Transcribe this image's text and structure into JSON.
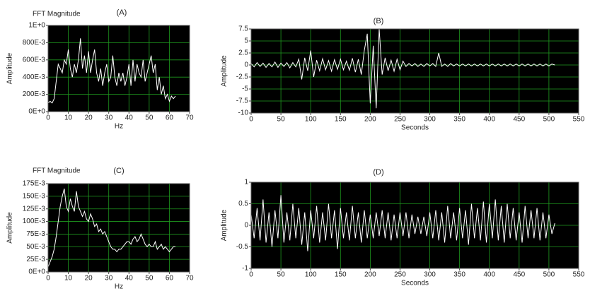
{
  "chart_data": [
    {
      "type": "line",
      "title": "(A)",
      "subtitle": "FFT Magnitude",
      "x_label": "Hz",
      "y_label": "Amplitude",
      "background": "#000000",
      "grid": true,
      "grid_color": "#1f9a1f",
      "color": "#ffffff",
      "xlim": [
        0,
        70
      ],
      "xticks": [
        0,
        10,
        20,
        30,
        40,
        50,
        60,
        70
      ],
      "ylim": [
        0,
        1
      ],
      "yticks": [
        {
          "value": 0,
          "label": "0E+0"
        },
        {
          "value": 0.2,
          "label": "200E-3"
        },
        {
          "value": 0.4,
          "label": "400E-3"
        },
        {
          "value": 0.6,
          "label": "600E-3"
        },
        {
          "value": 0.8,
          "label": "800E-3"
        },
        {
          "value": 1,
          "label": "1E+0"
        }
      ],
      "x": [
        0,
        1,
        2,
        3,
        4,
        5,
        6,
        7,
        8,
        9,
        10,
        11,
        12,
        13,
        14,
        15,
        16,
        17,
        18,
        19,
        20,
        21,
        22,
        23,
        24,
        25,
        26,
        27,
        28,
        29,
        30,
        31,
        32,
        33,
        34,
        35,
        36,
        37,
        38,
        39,
        40,
        41,
        42,
        43,
        44,
        45,
        46,
        47,
        48,
        49,
        50,
        51,
        52,
        53,
        54,
        55,
        56,
        57,
        58,
        59,
        60,
        61,
        62,
        63
      ],
      "values": [
        0.1,
        0.12,
        0.1,
        0.15,
        0.35,
        0.55,
        0.5,
        0.45,
        0.6,
        0.55,
        0.72,
        0.5,
        0.4,
        0.55,
        0.45,
        0.6,
        0.85,
        0.5,
        0.65,
        0.45,
        0.7,
        0.45,
        0.6,
        0.72,
        0.45,
        0.35,
        0.5,
        0.3,
        0.45,
        0.55,
        0.35,
        0.4,
        0.65,
        0.4,
        0.3,
        0.45,
        0.35,
        0.45,
        0.3,
        0.4,
        0.55,
        0.3,
        0.6,
        0.35,
        0.55,
        0.45,
        0.4,
        0.6,
        0.35,
        0.45,
        0.55,
        0.65,
        0.45,
        0.55,
        0.25,
        0.4,
        0.2,
        0.3,
        0.15,
        0.2,
        0.12,
        0.18,
        0.15,
        0.18
      ]
    },
    {
      "type": "line",
      "title": "(B)",
      "x_label": "Seconds",
      "y_label": "Amplitude",
      "background": "#000000",
      "grid": true,
      "grid_color": "#1f9a1f",
      "color": "#ffffff",
      "xlim": [
        0,
        550
      ],
      "xticks": [
        0,
        50,
        100,
        150,
        200,
        250,
        300,
        350,
        400,
        450,
        500,
        550
      ],
      "ylim": [
        -10,
        7.5
      ],
      "yticks": [
        -10,
        -7.5,
        -5,
        -2.5,
        0,
        2.5,
        5,
        7.5
      ],
      "x": [
        0,
        5,
        10,
        15,
        20,
        25,
        30,
        35,
        40,
        45,
        50,
        55,
        60,
        65,
        70,
        75,
        80,
        85,
        90,
        95,
        100,
        105,
        110,
        115,
        120,
        125,
        130,
        135,
        140,
        145,
        150,
        155,
        160,
        165,
        170,
        175,
        180,
        185,
        190,
        195,
        200,
        205,
        210,
        215,
        220,
        225,
        230,
        235,
        240,
        245,
        250,
        255,
        260,
        265,
        270,
        275,
        280,
        285,
        290,
        295,
        300,
        305,
        310,
        315,
        320,
        325,
        330,
        335,
        340,
        345,
        350,
        355,
        360,
        365,
        370,
        375,
        380,
        385,
        390,
        395,
        400,
        405,
        410,
        415,
        420,
        425,
        430,
        435,
        440,
        445,
        450,
        455,
        460,
        465,
        470,
        475,
        480,
        485,
        490,
        495,
        500,
        505,
        510
      ],
      "values": [
        0.3,
        -0.4,
        0.5,
        -0.3,
        0.4,
        -0.5,
        0.3,
        -0.4,
        0.6,
        -0.5,
        0.4,
        -0.3,
        0.5,
        -0.6,
        0.5,
        -0.4,
        1.2,
        -3,
        1.5,
        -1.2,
        3,
        -2.5,
        1,
        -1.2,
        1.3,
        -1,
        0.9,
        -1.3,
        1.1,
        -0.9,
        1.2,
        -1,
        0.8,
        -1.1,
        1.4,
        -1.5,
        1.2,
        -2,
        3,
        6.5,
        -8,
        4,
        -9,
        7.5,
        -2,
        1.5,
        -1.2,
        1,
        -1.3,
        1.2,
        -1,
        0.8,
        -0.3,
        0.3,
        -0.2,
        0.3,
        -0.3,
        0.2,
        -0.3,
        0.3,
        -0.2,
        0.3,
        -0.3,
        2.5,
        -0.3,
        0.2,
        -0.3,
        0.3,
        -0.2,
        0.2,
        -0.2,
        0.2,
        -0.2,
        0.2,
        -0.2,
        0.2,
        -0.2,
        0.2,
        -0.2,
        0.2,
        -0.2,
        0.2,
        -0.2,
        0.2,
        -0.2,
        0.2,
        -0.2,
        0.2,
        -0.2,
        0.2,
        -0.2,
        0.2,
        -0.2,
        0.2,
        -0.2,
        0.2,
        -0.2,
        0.2,
        -0.2,
        0.2,
        -0.2,
        0.2,
        0
      ]
    },
    {
      "type": "line",
      "title": "(C)",
      "subtitle": "FFT Magnitude",
      "x_label": "Hz",
      "y_label": "Amplitude",
      "background": "#000000",
      "grid": true,
      "grid_color": "#1f9a1f",
      "color": "#ffffff",
      "xlim": [
        0,
        70
      ],
      "xticks": [
        0,
        10,
        20,
        30,
        40,
        50,
        60,
        70
      ],
      "ylim": [
        0,
        0.175
      ],
      "yticks": [
        {
          "value": 0,
          "label": "0E+0"
        },
        {
          "value": 0.025,
          "label": "25E-3"
        },
        {
          "value": 0.05,
          "label": "50E-3"
        },
        {
          "value": 0.075,
          "label": "75E-3"
        },
        {
          "value": 0.1,
          "label": "100E-3"
        },
        {
          "value": 0.125,
          "label": "125E-3"
        },
        {
          "value": 0.15,
          "label": "150E-3"
        },
        {
          "value": 0.175,
          "label": "175E-3"
        }
      ],
      "x": [
        0,
        1,
        2,
        3,
        4,
        5,
        6,
        7,
        8,
        9,
        10,
        11,
        12,
        13,
        14,
        15,
        16,
        17,
        18,
        19,
        20,
        21,
        22,
        23,
        24,
        25,
        26,
        27,
        28,
        29,
        30,
        31,
        32,
        33,
        34,
        35,
        36,
        37,
        38,
        39,
        40,
        41,
        42,
        43,
        44,
        45,
        46,
        47,
        48,
        49,
        50,
        51,
        52,
        53,
        54,
        55,
        56,
        57,
        58,
        59,
        60,
        61,
        62,
        63
      ],
      "values": [
        0.01,
        0.02,
        0.03,
        0.045,
        0.07,
        0.1,
        0.13,
        0.15,
        0.165,
        0.13,
        0.12,
        0.145,
        0.13,
        0.12,
        0.16,
        0.13,
        0.12,
        0.11,
        0.12,
        0.105,
        0.1,
        0.115,
        0.105,
        0.09,
        0.095,
        0.08,
        0.085,
        0.075,
        0.08,
        0.07,
        0.06,
        0.05,
        0.045,
        0.045,
        0.04,
        0.045,
        0.045,
        0.05,
        0.055,
        0.06,
        0.06,
        0.055,
        0.065,
        0.07,
        0.06,
        0.065,
        0.075,
        0.065,
        0.055,
        0.05,
        0.055,
        0.05,
        0.05,
        0.06,
        0.045,
        0.05,
        0.055,
        0.045,
        0.05,
        0.045,
        0.04,
        0.045,
        0.05,
        0.05
      ]
    },
    {
      "type": "line",
      "title": "(D)",
      "x_label": "Seconds",
      "y_label": "Amplitude",
      "background": "#000000",
      "grid": true,
      "grid_color": "#1f9a1f",
      "color": "#ffffff",
      "xlim": [
        0,
        550
      ],
      "xticks": [
        0,
        50,
        100,
        150,
        200,
        250,
        300,
        350,
        400,
        450,
        500,
        550
      ],
      "ylim": [
        -1,
        1
      ],
      "yticks": [
        -1,
        -0.5,
        0,
        0.5,
        1
      ],
      "x": [
        0,
        5,
        10,
        15,
        20,
        25,
        30,
        35,
        40,
        45,
        50,
        55,
        60,
        65,
        70,
        75,
        80,
        85,
        90,
        95,
        100,
        105,
        110,
        115,
        120,
        125,
        130,
        135,
        140,
        145,
        150,
        155,
        160,
        165,
        170,
        175,
        180,
        185,
        190,
        195,
        200,
        205,
        210,
        215,
        220,
        225,
        230,
        235,
        240,
        245,
        250,
        255,
        260,
        265,
        270,
        275,
        280,
        285,
        290,
        295,
        300,
        305,
        310,
        315,
        320,
        325,
        330,
        335,
        340,
        345,
        350,
        355,
        360,
        365,
        370,
        375,
        380,
        385,
        390,
        395,
        400,
        405,
        410,
        415,
        420,
        425,
        430,
        435,
        440,
        445,
        450,
        455,
        460,
        465,
        470,
        475,
        480,
        485,
        490,
        495,
        500,
        505,
        510
      ],
      "values": [
        0.25,
        -0.3,
        0.4,
        -0.35,
        0.6,
        -0.4,
        0.3,
        -0.5,
        0.35,
        -0.3,
        0.7,
        -0.4,
        0.3,
        -0.35,
        0.5,
        -0.3,
        0.4,
        -0.45,
        0.3,
        -0.6,
        0.35,
        -0.3,
        0.45,
        -0.4,
        0.3,
        -0.35,
        0.5,
        -0.3,
        0.35,
        -0.55,
        0.4,
        -0.3,
        0.3,
        -0.35,
        0.45,
        -0.3,
        0.3,
        -0.4,
        0.35,
        -0.3,
        0.25,
        -0.3,
        0.3,
        -0.25,
        0.35,
        -0.3,
        0.3,
        -0.35,
        0.25,
        -0.3,
        0.3,
        -0.25,
        0.3,
        -0.3,
        0.25,
        -0.2,
        0.2,
        -0.2,
        0.2,
        -0.25,
        0.3,
        -0.3,
        0.35,
        -0.35,
        0.3,
        -0.4,
        0.45,
        -0.3,
        0.3,
        -0.35,
        0.4,
        -0.3,
        0.35,
        -0.45,
        0.5,
        -0.3,
        0.4,
        -0.35,
        0.55,
        -0.4,
        0.5,
        -0.3,
        0.6,
        -0.35,
        0.45,
        -0.4,
        0.5,
        -0.3,
        0.4,
        -0.35,
        0.3,
        -0.4,
        0.45,
        -0.3,
        0.35,
        -0.3,
        0.4,
        -0.35,
        0.3,
        -0.3,
        0.25,
        -0.2,
        0.05
      ]
    }
  ]
}
